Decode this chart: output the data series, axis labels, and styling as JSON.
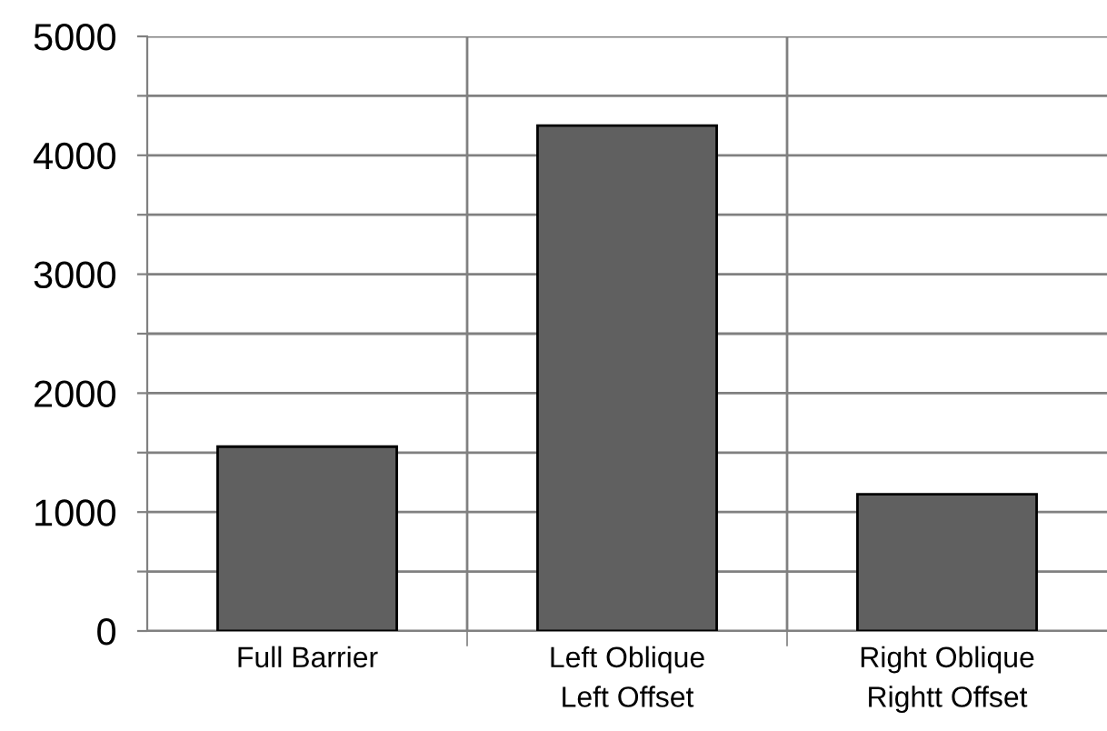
{
  "chart_data": {
    "type": "bar",
    "categories": [
      "Full Barrier",
      "Left Oblique\nLeft Offset",
      "Right Oblique\nRightt Offset"
    ],
    "values": [
      1550,
      4250,
      1150
    ],
    "color": "#606060",
    "ylim": [
      0,
      5000
    ],
    "yticks": [
      0,
      {
        "value": 500,
        "label": null
      },
      1000,
      {
        "value": 1500,
        "label": null
      },
      2000,
      {
        "value": 2500,
        "label": null
      },
      3000,
      {
        "value": 3500,
        "label": null
      },
      4000,
      {
        "value": 4500,
        "label": null
      },
      5000
    ],
    "grid": true,
    "legend": false
  }
}
